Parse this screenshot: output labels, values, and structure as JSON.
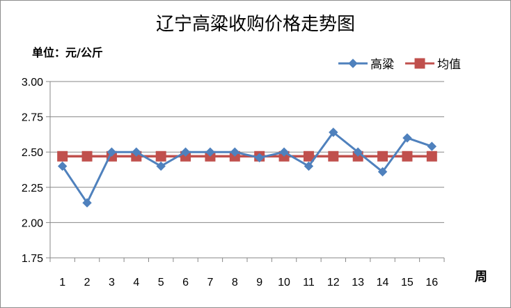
{
  "chart_data": {
    "type": "line",
    "title": "辽宁高粱收购价格走势图",
    "ylabel": "单位：元/公斤",
    "xlabel": "周",
    "categories": [
      "1",
      "2",
      "3",
      "4",
      "5",
      "6",
      "7",
      "8",
      "9",
      "10",
      "11",
      "12",
      "13",
      "14",
      "15",
      "16"
    ],
    "ylim": [
      1.75,
      3.0
    ],
    "yticks": [
      "1.75",
      "2.00",
      "2.25",
      "2.50",
      "2.75",
      "3.00"
    ],
    "grid": true,
    "legend_position": "top-right",
    "series": [
      {
        "name": "高粱",
        "color": "#4f81bd",
        "marker": "diamond",
        "values": [
          2.4,
          2.14,
          2.5,
          2.5,
          2.4,
          2.5,
          2.5,
          2.5,
          2.46,
          2.5,
          2.4,
          2.64,
          2.5,
          2.36,
          2.6,
          2.54
        ]
      },
      {
        "name": "均值",
        "color": "#c0504d",
        "marker": "square",
        "values": [
          2.47,
          2.47,
          2.47,
          2.47,
          2.47,
          2.47,
          2.47,
          2.47,
          2.47,
          2.47,
          2.47,
          2.47,
          2.47,
          2.47,
          2.47,
          2.47
        ]
      }
    ]
  }
}
